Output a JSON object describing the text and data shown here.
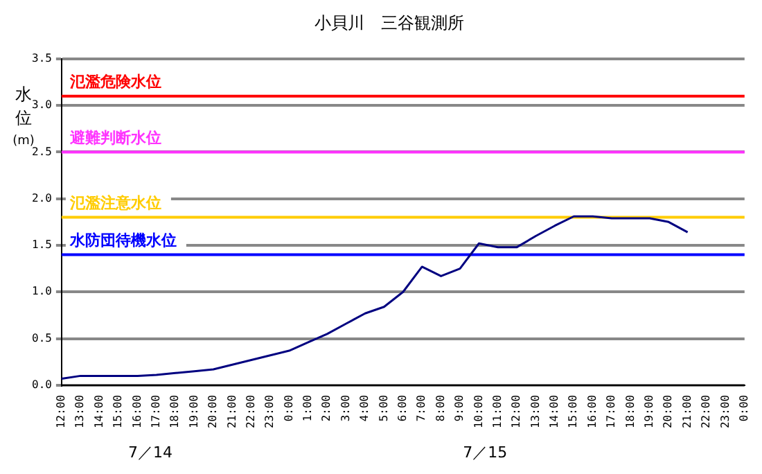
{
  "chart_data": {
    "type": "line",
    "title": "小貝川　三谷観測所",
    "ylabel": "水位(m)",
    "categories": [
      "12:00",
      "13:00",
      "14:00",
      "15:00",
      "16:00",
      "17:00",
      "18:00",
      "19:00",
      "20:00",
      "21:00",
      "22:00",
      "23:00",
      "0:00",
      "1:00",
      "2:00",
      "3:00",
      "4:00",
      "5:00",
      "6:00",
      "7:00",
      "8:00",
      "9:00",
      "10:00",
      "11:00",
      "12:00",
      "13:00",
      "14:00",
      "15:00",
      "16:00",
      "17:00",
      "18:00",
      "19:00",
      "20:00",
      "21:00",
      "22:00",
      "23:00",
      "0:00"
    ],
    "series": [
      {
        "color": "#000080",
        "values": [
          0.07,
          0.1,
          0.1,
          0.1,
          0.1,
          0.11,
          0.13,
          0.15,
          0.17,
          0.22,
          0.27,
          0.32,
          0.37,
          0.46,
          0.55,
          0.66,
          0.77,
          0.84,
          1.0,
          1.27,
          1.17,
          1.25,
          1.52,
          1.48,
          1.48,
          1.6,
          1.71,
          1.81,
          1.81,
          1.79,
          1.79,
          1.79,
          1.75,
          1.64,
          null,
          null,
          null
        ]
      }
    ],
    "ylim": [
      0,
      3.5
    ],
    "yticks": [
      {
        "value": 0,
        "label": "0.0"
      },
      {
        "value": 0.5,
        "label": "0.5"
      },
      {
        "value": 1,
        "label": "1.0"
      },
      {
        "value": 1.5,
        "label": "1.5"
      },
      {
        "value": 2,
        "label": "2.0"
      },
      {
        "value": 2.5,
        "label": "2.5"
      },
      {
        "value": 3,
        "label": "3.0"
      },
      {
        "value": 3.5,
        "label": "3.5"
      }
    ],
    "grid": "y",
    "legend": false,
    "marker": "none",
    "line_style": "solid",
    "ref_lines": [
      {
        "axis": "y",
        "value": 3.1,
        "label": "氾濫危険水位",
        "color": "#ff0000"
      },
      {
        "axis": "y",
        "value": 2.5,
        "label": "避難判断水位",
        "color": "#ff33ff"
      },
      {
        "axis": "y",
        "value": 1.8,
        "label": "氾濫注意水位",
        "color": "#ffcc00"
      },
      {
        "axis": "y",
        "value": 1.4,
        "label": "水防団待機水位",
        "color": "#0000ff"
      }
    ],
    "annotations": [
      "7／14",
      "7／15"
    ]
  }
}
